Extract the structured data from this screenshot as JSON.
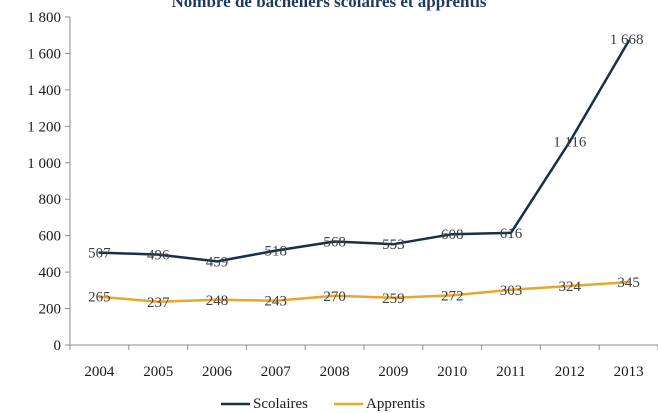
{
  "chart_data": {
    "type": "line",
    "title": "Nombre de bacheliers scolaires et apprentis",
    "x": [
      "2004",
      "2005",
      "2006",
      "2007",
      "2008",
      "2009",
      "2010",
      "2011",
      "2012",
      "2013"
    ],
    "series": [
      {
        "name": "Scolaires",
        "color": "#15304d",
        "values": [
          507,
          496,
          459,
          518,
          568,
          553,
          608,
          616,
          1116,
          1668
        ],
        "labels": [
          "507",
          "496",
          "459",
          "518",
          "568",
          "553",
          "608",
          "616",
          "1 116",
          "1 668"
        ]
      },
      {
        "name": "Apprentis",
        "color": "#e9a62a",
        "values": [
          265,
          237,
          248,
          243,
          270,
          259,
          272,
          303,
          324,
          345
        ],
        "labels": [
          "265",
          "237",
          "248",
          "243",
          "270",
          "259",
          "272",
          "303",
          "324",
          "345"
        ]
      }
    ],
    "ylim": [
      0,
      1800
    ],
    "yticks": [
      0,
      200,
      400,
      600,
      800,
      1000,
      1200,
      1400,
      1600,
      1800
    ],
    "ytick_labels": [
      "0",
      "200",
      "400",
      "600",
      "800",
      "1 000",
      "1 200",
      "1 400",
      "1 600",
      "1 800"
    ],
    "grid": false,
    "legend_position": "bottom"
  }
}
